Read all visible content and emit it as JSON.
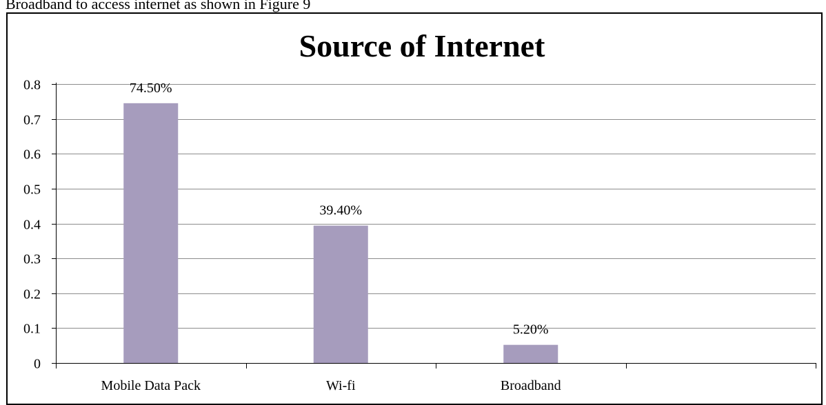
{
  "document": {
    "text_above": "Broadband to access internet as shown in Figure 9"
  },
  "colors": {
    "bar": "#a69cbd",
    "gridline": "#8c8c8c",
    "axis": "#000000"
  },
  "chart_data": {
    "type": "bar",
    "title": "Source of Internet",
    "xlabel": "",
    "ylabel": "",
    "categories": [
      "Mobile Data Pack",
      "Wi-fi",
      "Broadband"
    ],
    "values": [
      0.745,
      0.394,
      0.052
    ],
    "data_labels": [
      "74.50%",
      "39.40%",
      "5.20%"
    ],
    "ylim": [
      0,
      0.8
    ],
    "yticks": [
      "0",
      "0.1",
      "0.2",
      "0.3",
      "0.4",
      "0.5",
      "0.6",
      "0.7",
      "0.8"
    ],
    "grid": true,
    "legend": "none"
  }
}
